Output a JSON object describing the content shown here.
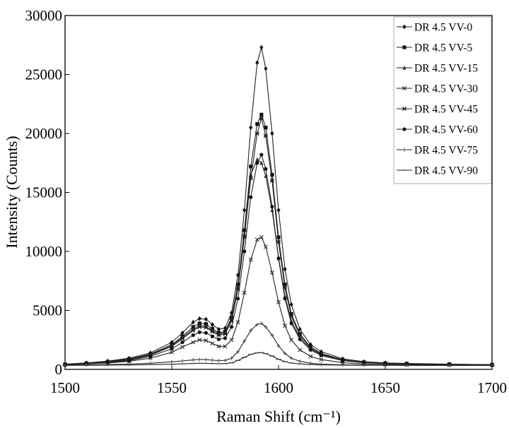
{
  "chart_data": {
    "type": "line",
    "title": "",
    "xlabel": "Raman Shift (cm⁻¹)",
    "ylabel": "Intensity (Counts)",
    "xlim": [
      1500,
      1700
    ],
    "ylim": [
      0,
      30000
    ],
    "x_ticks": [
      "1500",
      "1550",
      "1600",
      "1650",
      "1700"
    ],
    "y_ticks": [
      "0",
      "5000",
      "10000",
      "15000",
      "20000",
      "25000",
      "30000"
    ],
    "grid": false,
    "legend_position": "top-right",
    "x": [
      1500,
      1510,
      1520,
      1530,
      1540,
      1550,
      1555,
      1560,
      1563,
      1566,
      1569,
      1572,
      1575,
      1578,
      1581,
      1584,
      1587,
      1590,
      1592,
      1594,
      1597,
      1600,
      1603,
      1606,
      1610,
      1615,
      1620,
      1630,
      1640,
      1650,
      1660,
      1680,
      1700
    ],
    "series": [
      {
        "name": "DR 4.5 VV-0",
        "marker": "diamond",
        "values": [
          450,
          550,
          700,
          950,
          1400,
          2300,
          3100,
          4000,
          4300,
          4250,
          3800,
          3400,
          3500,
          4800,
          8000,
          13500,
          20500,
          26000,
          27300,
          25500,
          20000,
          13500,
          8500,
          5500,
          3400,
          2100,
          1500,
          900,
          650,
          550,
          500,
          450,
          400
        ]
      },
      {
        "name": "DR 4.5 VV-5",
        "marker": "square",
        "values": [
          430,
          520,
          650,
          880,
          1300,
          2100,
          2800,
          3600,
          3900,
          3850,
          3450,
          3100,
          3200,
          4400,
          7200,
          11800,
          17200,
          20800,
          21600,
          20500,
          16500,
          11200,
          7200,
          4700,
          3000,
          1900,
          1350,
          820,
          600,
          520,
          480,
          430,
          400
        ]
      },
      {
        "name": "DR 4.5 VV-15",
        "marker": "triangle",
        "values": [
          420,
          500,
          620,
          840,
          1250,
          2000,
          2700,
          3400,
          3700,
          3650,
          3300,
          3000,
          3100,
          4300,
          7000,
          11500,
          16500,
          17800,
          17500,
          16400,
          13500,
          9500,
          6200,
          4100,
          2700,
          1750,
          1250,
          780,
          580,
          500,
          460,
          420,
          390
        ]
      },
      {
        "name": "DR 4.5 VV-30",
        "marker": "x",
        "values": [
          400,
          460,
          540,
          680,
          950,
          1450,
          1900,
          2300,
          2500,
          2450,
          2200,
          1950,
          1950,
          2500,
          4000,
          6500,
          9300,
          11000,
          11200,
          10400,
          8200,
          5700,
          3700,
          2500,
          1650,
          1100,
          830,
          560,
          460,
          420,
          400,
          380,
          370
        ]
      },
      {
        "name": "DR 4.5 VV-45",
        "marker": "x-square",
        "values": [
          410,
          490,
          600,
          800,
          1200,
          1950,
          2600,
          3300,
          3600,
          3550,
          3200,
          2900,
          3000,
          4100,
          6800,
          11200,
          16200,
          20000,
          21300,
          19800,
          16000,
          10800,
          6900,
          4500,
          2900,
          1850,
          1300,
          800,
          590,
          510,
          470,
          420,
          390
        ]
      },
      {
        "name": "DR 4.5 VV-60",
        "marker": "circle",
        "values": [
          400,
          470,
          570,
          750,
          1100,
          1750,
          2300,
          2900,
          3150,
          3100,
          2800,
          2550,
          2650,
          3600,
          6000,
          10000,
          14600,
          17500,
          18200,
          17000,
          13800,
          9400,
          6000,
          3900,
          2550,
          1650,
          1180,
          740,
          560,
          490,
          450,
          410,
          380
        ]
      },
      {
        "name": "DR 4.5 VV-75",
        "marker": "plus",
        "values": [
          360,
          380,
          410,
          450,
          520,
          640,
          720,
          800,
          840,
          830,
          780,
          740,
          760,
          950,
          1500,
          2400,
          3300,
          3800,
          3900,
          3600,
          2900,
          2000,
          1350,
          950,
          680,
          520,
          450,
          390,
          370,
          360,
          355,
          350,
          345
        ]
      },
      {
        "name": "DR 4.5 VV-90",
        "marker": "dash",
        "values": [
          340,
          350,
          360,
          375,
          400,
          440,
          470,
          500,
          515,
          510,
          495,
          480,
          490,
          560,
          760,
          1020,
          1270,
          1400,
          1420,
          1340,
          1130,
          860,
          660,
          540,
          460,
          410,
          385,
          360,
          350,
          345,
          340,
          335,
          330
        ]
      }
    ]
  }
}
